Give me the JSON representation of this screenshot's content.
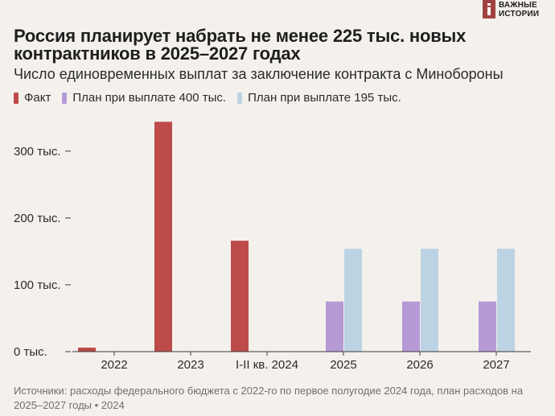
{
  "logo": {
    "line1": "ВАЖНЫЕ",
    "line2": "ИСТОРИИ"
  },
  "title": "Россия планирует набрать не менее 225 тыс. новых контрактников в 2025–2027 годах",
  "subtitle": "Число единовременных выплат за заключение контракта с Минобороны",
  "source": "Источники: расходы федерального бюджета с 2022-го по первое полугодие 2024 года, план расходов на 2025–2027 годы • 2024",
  "chart_data": {
    "type": "bar",
    "categories": [
      "2022",
      "2023",
      "I-II кв. 2024",
      "2025",
      "2026",
      "2027"
    ],
    "series": [
      {
        "name": "Факт",
        "color": "#bd4b4a",
        "values": [
          6,
          344,
          166,
          0,
          0,
          0
        ]
      },
      {
        "name": "План при выплате 400 тыс.",
        "color": "#b59ad6",
        "values": [
          0,
          0,
          0,
          75,
          75,
          75
        ]
      },
      {
        "name": "План при выплате 195 тыс.",
        "color": "#bcd3e3",
        "values": [
          0,
          0,
          0,
          154,
          154,
          154
        ]
      }
    ],
    "yticks": [
      0,
      100,
      200,
      300
    ],
    "ytick_labels": [
      "0 тыс.",
      "100 тыс.",
      "200 тыс.",
      "300 тыс."
    ],
    "ylim": [
      0,
      350
    ],
    "legend_position": "top-left",
    "grid": false
  }
}
